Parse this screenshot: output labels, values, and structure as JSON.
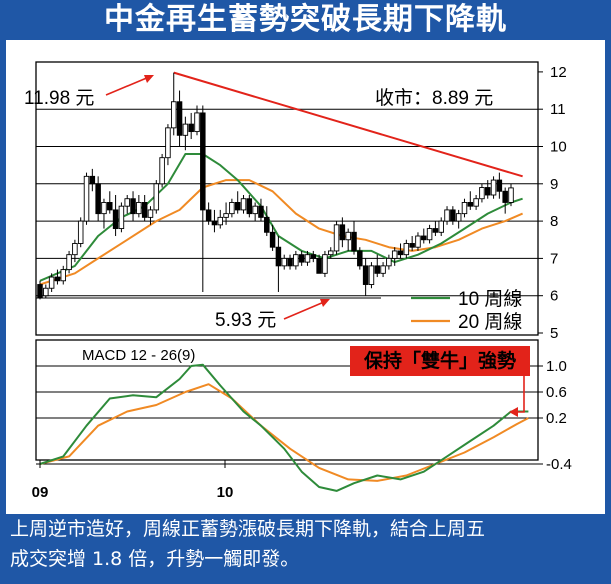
{
  "title": "中金再生蓄勢突破長期下降軌",
  "caption": {
    "line1": "上周逆市造好，周線正蓄勢漲破長期下降軌，結合上周五",
    "line2": "成交突增 1.8 倍，升勢一觸即發。"
  },
  "colors": {
    "background": "#1f57a6",
    "candle_up": "#ffffff",
    "candle_down": "#000000",
    "ma10": "#2e8b3a",
    "ma20": "#f08a24",
    "trendline": "#e2231a",
    "badge": "#e2231a",
    "macd": "#2e8b3a",
    "signal": "#f08a24"
  },
  "chart_data": [
    {
      "type": "candlestick",
      "y_ticks": [
        "12",
        "11",
        "10",
        "9",
        "8",
        "7",
        "6",
        "5"
      ],
      "ylim": [
        5,
        12
      ],
      "x_labels": [
        "09",
        "10"
      ],
      "close_label": "收市：8.89 元",
      "high_label": "11.98 元",
      "low_label": "5.93 元",
      "legend": [
        {
          "name": "10 周線",
          "color": "#2e8b3a"
        },
        {
          "name": "20 周線",
          "color": "#f08a24"
        }
      ],
      "candles": [
        [
          6.3,
          6.4,
          5.9,
          5.95
        ],
        [
          6.0,
          6.3,
          5.95,
          6.2
        ],
        [
          6.2,
          6.6,
          6.1,
          6.5
        ],
        [
          6.5,
          6.7,
          6.3,
          6.4
        ],
        [
          6.4,
          6.8,
          6.3,
          6.7
        ],
        [
          6.7,
          7.2,
          6.6,
          7.1
        ],
        [
          7.1,
          7.5,
          6.9,
          7.4
        ],
        [
          7.4,
          8.1,
          7.3,
          8.0
        ],
        [
          8.0,
          9.3,
          7.9,
          9.2
        ],
        [
          9.2,
          9.4,
          8.8,
          9.0
        ],
        [
          9.0,
          9.2,
          8.0,
          8.2
        ],
        [
          8.2,
          8.6,
          7.8,
          8.5
        ],
        [
          8.5,
          8.8,
          8.2,
          8.3
        ],
        [
          8.3,
          8.7,
          7.6,
          7.8
        ],
        [
          7.8,
          8.5,
          7.7,
          8.4
        ],
        [
          8.4,
          8.7,
          8.2,
          8.6
        ],
        [
          8.6,
          8.8,
          8.0,
          8.2
        ],
        [
          8.2,
          8.7,
          8.1,
          8.5
        ],
        [
          8.5,
          8.7,
          8.0,
          8.1
        ],
        [
          8.1,
          8.4,
          7.9,
          8.3
        ],
        [
          8.3,
          9.1,
          8.2,
          9.0
        ],
        [
          9.0,
          9.8,
          8.9,
          9.7
        ],
        [
          9.7,
          10.6,
          9.5,
          10.5
        ],
        [
          10.5,
          11.98,
          10.3,
          11.2
        ],
        [
          11.2,
          11.5,
          10.0,
          10.3
        ],
        [
          10.3,
          10.8,
          9.9,
          10.6
        ],
        [
          10.6,
          10.9,
          10.2,
          10.4
        ],
        [
          10.4,
          11.1,
          10.3,
          10.9
        ],
        [
          10.9,
          11.1,
          6.1,
          8.3
        ],
        [
          8.3,
          8.5,
          7.9,
          8.0
        ],
        [
          8.0,
          8.3,
          7.7,
          7.9
        ],
        [
          7.9,
          8.3,
          7.8,
          8.1
        ],
        [
          8.1,
          8.5,
          7.9,
          8.2
        ],
        [
          8.2,
          8.6,
          8.1,
          8.5
        ],
        [
          8.5,
          8.8,
          8.2,
          8.3
        ],
        [
          8.3,
          8.7,
          8.2,
          8.6
        ],
        [
          8.6,
          8.7,
          8.1,
          8.2
        ],
        [
          8.2,
          8.5,
          8.0,
          8.4
        ],
        [
          8.4,
          8.6,
          8.0,
          8.1
        ],
        [
          8.1,
          8.4,
          7.6,
          7.7
        ],
        [
          7.7,
          7.9,
          7.2,
          7.3
        ],
        [
          7.3,
          7.6,
          6.1,
          6.8
        ],
        [
          6.8,
          7.1,
          6.7,
          7.0
        ],
        [
          7.0,
          7.1,
          6.7,
          6.8
        ],
        [
          6.8,
          7.2,
          6.7,
          7.1
        ],
        [
          7.1,
          7.2,
          6.8,
          6.9
        ],
        [
          6.9,
          7.2,
          6.8,
          7.1
        ],
        [
          7.1,
          7.2,
          6.9,
          7.0
        ],
        [
          7.0,
          7.1,
          6.6,
          6.6
        ],
        [
          6.6,
          7.2,
          6.5,
          7.1
        ],
        [
          7.1,
          7.3,
          7.0,
          7.2
        ],
        [
          7.2,
          8.0,
          7.1,
          7.9
        ],
        [
          7.9,
          8.1,
          7.3,
          7.5
        ],
        [
          7.5,
          7.8,
          7.2,
          7.7
        ],
        [
          7.7,
          8.0,
          7.1,
          7.2
        ],
        [
          7.2,
          7.3,
          6.7,
          6.8
        ],
        [
          6.8,
          7.0,
          6.0,
          6.3
        ],
        [
          6.3,
          6.9,
          6.2,
          6.8
        ],
        [
          6.8,
          7.1,
          6.5,
          6.6
        ],
        [
          6.6,
          6.9,
          6.5,
          6.8
        ],
        [
          6.8,
          7.1,
          6.7,
          7.0
        ],
        [
          7.0,
          7.3,
          6.8,
          7.2
        ],
        [
          7.2,
          7.4,
          7.0,
          7.1
        ],
        [
          7.1,
          7.5,
          7.0,
          7.4
        ],
        [
          7.4,
          7.6,
          7.2,
          7.3
        ],
        [
          7.3,
          7.7,
          7.2,
          7.6
        ],
        [
          7.6,
          7.8,
          7.4,
          7.5
        ],
        [
          7.5,
          7.9,
          7.4,
          7.8
        ],
        [
          7.8,
          8.0,
          7.6,
          7.7
        ],
        [
          7.7,
          8.1,
          7.6,
          8.0
        ],
        [
          8.0,
          8.4,
          7.9,
          8.3
        ],
        [
          8.3,
          8.4,
          7.9,
          8.0
        ],
        [
          8.0,
          8.3,
          7.8,
          8.2
        ],
        [
          8.2,
          8.6,
          8.1,
          8.5
        ],
        [
          8.5,
          8.8,
          8.3,
          8.4
        ],
        [
          8.4,
          8.7,
          8.3,
          8.6
        ],
        [
          8.6,
          9.0,
          8.5,
          8.9
        ],
        [
          8.9,
          9.1,
          8.6,
          8.7
        ],
        [
          8.7,
          9.2,
          8.6,
          9.1
        ],
        [
          9.1,
          9.3,
          8.6,
          8.8
        ],
        [
          8.8,
          8.9,
          8.2,
          8.5
        ],
        [
          8.5,
          9.0,
          8.4,
          8.89
        ]
      ],
      "ma10": [
        [
          0,
          6.4
        ],
        [
          6,
          6.8
        ],
        [
          10,
          7.6
        ],
        [
          14,
          8.1
        ],
        [
          18,
          8.4
        ],
        [
          22,
          9.0
        ],
        [
          25,
          9.8
        ],
        [
          28,
          9.8
        ],
        [
          31,
          9.5
        ],
        [
          34,
          9.1
        ],
        [
          38,
          8.4
        ],
        [
          41,
          7.6
        ],
        [
          45,
          7.2
        ],
        [
          49,
          7.0
        ],
        [
          53,
          7.2
        ],
        [
          57,
          7.2
        ],
        [
          61,
          6.9
        ],
        [
          65,
          7.1
        ],
        [
          69,
          7.4
        ],
        [
          73,
          7.8
        ],
        [
          77,
          8.2
        ],
        [
          81,
          8.5
        ],
        [
          83,
          8.6
        ]
      ],
      "ma20": [
        [
          0,
          6.3
        ],
        [
          6,
          6.6
        ],
        [
          10,
          7.0
        ],
        [
          15,
          7.5
        ],
        [
          20,
          8.0
        ],
        [
          24,
          8.3
        ],
        [
          28,
          8.9
        ],
        [
          32,
          9.1
        ],
        [
          36,
          9.1
        ],
        [
          40,
          8.8
        ],
        [
          44,
          8.2
        ],
        [
          48,
          7.8
        ],
        [
          52,
          7.6
        ],
        [
          56,
          7.5
        ],
        [
          60,
          7.3
        ],
        [
          64,
          7.2
        ],
        [
          68,
          7.3
        ],
        [
          72,
          7.5
        ],
        [
          76,
          7.8
        ],
        [
          80,
          8.0
        ],
        [
          83,
          8.2
        ]
      ],
      "trendline": [
        [
          23,
          11.98
        ],
        [
          83,
          9.2
        ]
      ]
    },
    {
      "type": "line",
      "title": "MACD 12 - 26(9)",
      "y_ticks": [
        "1.0",
        "0.6",
        "0.2",
        "-0.4"
      ],
      "badge": "保持「雙牛」強勢",
      "macd": [
        [
          0,
          -0.4
        ],
        [
          4,
          -0.3
        ],
        [
          8,
          0.1
        ],
        [
          12,
          0.5
        ],
        [
          16,
          0.55
        ],
        [
          20,
          0.52
        ],
        [
          24,
          0.8
        ],
        [
          26,
          1.0
        ],
        [
          28,
          1.02
        ],
        [
          31,
          0.7
        ],
        [
          35,
          0.3
        ],
        [
          38,
          0.1
        ],
        [
          42,
          -0.2
        ],
        [
          45,
          -0.5
        ],
        [
          48,
          -0.7
        ],
        [
          51,
          -0.75
        ],
        [
          54,
          -0.65
        ],
        [
          58,
          -0.55
        ],
        [
          62,
          -0.6
        ],
        [
          66,
          -0.5
        ],
        [
          70,
          -0.3
        ],
        [
          74,
          -0.1
        ],
        [
          78,
          0.1
        ],
        [
          81,
          0.3
        ],
        [
          84,
          0.3
        ]
      ],
      "signal": [
        [
          0,
          -0.4
        ],
        [
          5,
          -0.3
        ],
        [
          10,
          0.1
        ],
        [
          15,
          0.3
        ],
        [
          20,
          0.4
        ],
        [
          25,
          0.6
        ],
        [
          29,
          0.72
        ],
        [
          33,
          0.5
        ],
        [
          38,
          0.1
        ],
        [
          43,
          -0.2
        ],
        [
          48,
          -0.45
        ],
        [
          53,
          -0.6
        ],
        [
          58,
          -0.62
        ],
        [
          63,
          -0.55
        ],
        [
          68,
          -0.4
        ],
        [
          73,
          -0.25
        ],
        [
          78,
          -0.05
        ],
        [
          82,
          0.12
        ],
        [
          84,
          0.2
        ]
      ]
    }
  ]
}
